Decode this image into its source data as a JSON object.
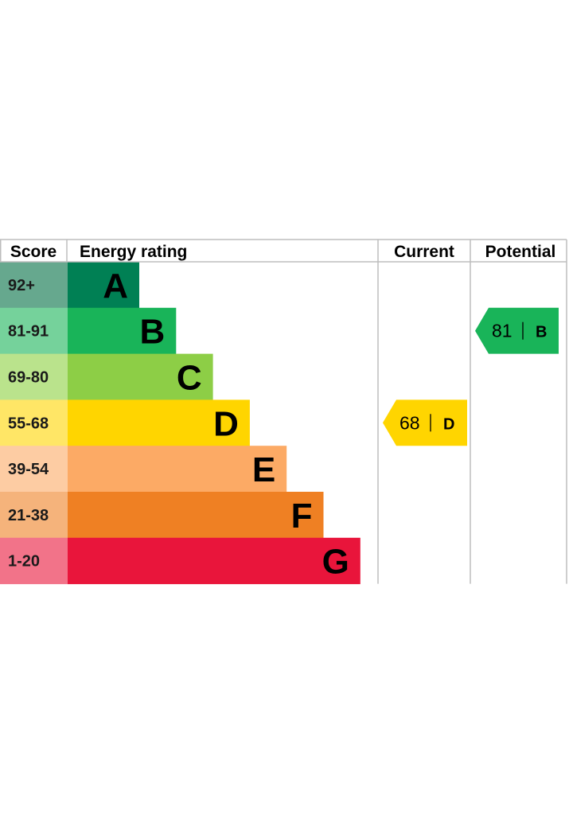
{
  "chart_data": {
    "type": "bar",
    "headers": {
      "score": "Score",
      "rating": "Energy rating",
      "current": "Current",
      "potential": "Potential"
    },
    "bands": [
      {
        "letter": "A",
        "score": "92+",
        "min": 92,
        "max": 100,
        "color": "#008054",
        "score_bg": "#66a88e"
      },
      {
        "letter": "B",
        "score": "81-91",
        "min": 81,
        "max": 91,
        "color": "#19b459",
        "score_bg": "#75d29b"
      },
      {
        "letter": "C",
        "score": "69-80",
        "min": 69,
        "max": 80,
        "color": "#8dce46",
        "score_bg": "#bae38c"
      },
      {
        "letter": "D",
        "score": "55-68",
        "min": 55,
        "max": 68,
        "color": "#ffd500",
        "score_bg": "#ffe666"
      },
      {
        "letter": "E",
        "score": "39-54",
        "min": 39,
        "max": 54,
        "color": "#fcaa65",
        "score_bg": "#fdcca3"
      },
      {
        "letter": "F",
        "score": "21-38",
        "min": 21,
        "max": 38,
        "color": "#ef8023",
        "score_bg": "#f5b37b"
      },
      {
        "letter": "G",
        "score": "1-20",
        "min": 1,
        "max": 20,
        "color": "#e9153b",
        "score_bg": "#f27389"
      }
    ],
    "current": {
      "value": 68,
      "band": "D",
      "color": "#ffd500"
    },
    "potential": {
      "value": 81,
      "band": "B",
      "color": "#19b459"
    },
    "grid_color": "#bdbdbd"
  }
}
